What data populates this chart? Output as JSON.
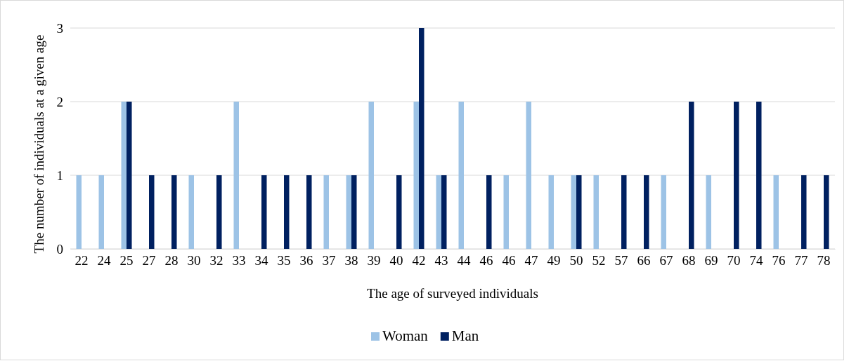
{
  "chart_data": {
    "type": "bar",
    "xlabel": "The age of surveyed individuals",
    "ylabel": "The number of individuals at a given age",
    "categories": [
      "22",
      "24",
      "25",
      "27",
      "28",
      "30",
      "32",
      "33",
      "34",
      "35",
      "36",
      "37",
      "38",
      "39",
      "40",
      "42",
      "43",
      "44",
      "46",
      "46",
      "47",
      "49",
      "50",
      "52",
      "57",
      "66",
      "67",
      "68",
      "69",
      "70",
      "74",
      "76",
      "77",
      "78"
    ],
    "series": [
      {
        "name": "Woman",
        "color": "#9dc3e6",
        "values": [
          1,
          1,
          2,
          0,
          0,
          1,
          0,
          2,
          0,
          0,
          0,
          1,
          1,
          2,
          0,
          2,
          1,
          2,
          0,
          1,
          2,
          1,
          1,
          1,
          0,
          0,
          1,
          0,
          1,
          0,
          0,
          1,
          0,
          0
        ]
      },
      {
        "name": "Man",
        "color": "#002060",
        "values": [
          0,
          0,
          2,
          1,
          1,
          0,
          1,
          0,
          1,
          1,
          1,
          0,
          1,
          0,
          1,
          3,
          1,
          0,
          1,
          0,
          0,
          0,
          1,
          0,
          1,
          1,
          0,
          2,
          0,
          2,
          2,
          0,
          1,
          1
        ]
      }
    ],
    "ylim": [
      0,
      3
    ],
    "yticks": [
      0,
      1,
      2,
      3
    ],
    "grid": "y",
    "legend": "bottom"
  }
}
